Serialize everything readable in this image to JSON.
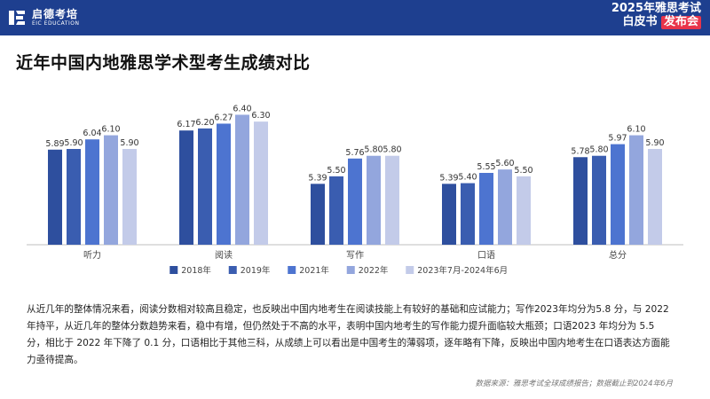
{
  "header": {
    "logo_cn": "启德考培",
    "logo_en": "EIC EDUCATION",
    "report_line1": "2025年雅思考试",
    "report_line2_prefix": "白皮书",
    "report_line2_highlight": "发布会"
  },
  "page_title": "近年中国内地雅思学术型考生成绩对比",
  "summary": "从近几年的整体情况来看，阅读分数相对较高且稳定，也反映出中国内地考生在阅读技能上有较好的基础和应试能力；写作2023年均分为5.8 分，与 2022 年持平，从近几年的整体分数趋势来看，稳中有增，但仍然处于不高的水平，表明中国内地考生的写作能力提升面临较大瓶颈；口语2023 年均分为 5.5 分，相比于 2022 年下降了 0.1 分，口语相比于其他三科，从成绩上可以看出是中国考生的薄弱项，逐年略有下降，反映出中国内地考生在口语表达方面能力亟待提高。",
  "source": "数据来源：雅思考试全球成绩报告；数据截止到2024年6月",
  "chart_data": {
    "type": "bar",
    "title": "近年中国内地雅思学术型考生成绩对比",
    "xlabel": "",
    "ylabel": "",
    "ylim": [
      4.5,
      6.6
    ],
    "grid": false,
    "legend_position": "bottom",
    "categories": [
      "听力",
      "阅读",
      "写作",
      "口语",
      "总分"
    ],
    "series": [
      {
        "name": "2018年",
        "color": "#2e4f9e",
        "values": [
          5.89,
          6.17,
          5.39,
          5.39,
          5.78
        ]
      },
      {
        "name": "2019年",
        "color": "#3a5db0",
        "values": [
          5.9,
          6.2,
          5.5,
          5.4,
          5.8
        ]
      },
      {
        "name": "2021年",
        "color": "#4d74d0",
        "values": [
          6.04,
          6.27,
          5.76,
          5.55,
          5.97
        ]
      },
      {
        "name": "2022年",
        "color": "#93a6dd",
        "values": [
          6.1,
          6.4,
          5.8,
          5.6,
          6.1
        ]
      },
      {
        "name": "2023年7月-2024年6月",
        "color": "#c3cbe9",
        "values": [
          5.9,
          6.3,
          5.8,
          5.5,
          5.9
        ]
      }
    ]
  }
}
